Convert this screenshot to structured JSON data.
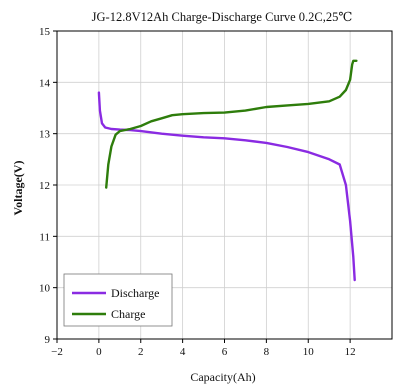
{
  "chart_data": {
    "type": "line",
    "title": "JG-12.8V12Ah Charge-Discharge Curve  0.2C,25℃",
    "xlabel": "Capacity(Ah)",
    "ylabel": "Voltage(V)",
    "xlim": [
      -2,
      14
    ],
    "ylim": [
      9,
      15
    ],
    "xticks": [
      -2,
      0,
      2,
      4,
      6,
      8,
      10,
      12
    ],
    "yticks": [
      9,
      10,
      11,
      12,
      13,
      14,
      15
    ],
    "grid": true,
    "legend_position": "bottom-left",
    "series": [
      {
        "name": "Discharge",
        "color": "#8a2be2",
        "points": [
          [
            0,
            13.8
          ],
          [
            0.05,
            13.45
          ],
          [
            0.15,
            13.2
          ],
          [
            0.3,
            13.12
          ],
          [
            0.6,
            13.09
          ],
          [
            1,
            13.08
          ],
          [
            1.5,
            13.07
          ],
          [
            2,
            13.05
          ],
          [
            3,
            13.0
          ],
          [
            4,
            12.96
          ],
          [
            5,
            12.93
          ],
          [
            6,
            12.91
          ],
          [
            7,
            12.87
          ],
          [
            8,
            12.82
          ],
          [
            9,
            12.74
          ],
          [
            10,
            12.64
          ],
          [
            11,
            12.5
          ],
          [
            11.5,
            12.4
          ],
          [
            11.8,
            12.0
          ],
          [
            12.0,
            11.3
          ],
          [
            12.15,
            10.6
          ],
          [
            12.22,
            10.15
          ]
        ]
      },
      {
        "name": "Charge",
        "color": "#2e7d0b",
        "points": [
          [
            0.35,
            11.95
          ],
          [
            0.45,
            12.4
          ],
          [
            0.6,
            12.75
          ],
          [
            0.8,
            12.98
          ],
          [
            1.0,
            13.05
          ],
          [
            1.5,
            13.09
          ],
          [
            2.0,
            13.15
          ],
          [
            2.5,
            13.24
          ],
          [
            3,
            13.3
          ],
          [
            3.5,
            13.36
          ],
          [
            4,
            13.38
          ],
          [
            5,
            13.4
          ],
          [
            6,
            13.41
          ],
          [
            7,
            13.45
          ],
          [
            8,
            13.52
          ],
          [
            9,
            13.55
          ],
          [
            10,
            13.58
          ],
          [
            11,
            13.63
          ],
          [
            11.5,
            13.72
          ],
          [
            11.8,
            13.85
          ],
          [
            12.0,
            14.05
          ],
          [
            12.1,
            14.35
          ],
          [
            12.15,
            14.42
          ],
          [
            12.3,
            14.42
          ]
        ]
      }
    ]
  }
}
